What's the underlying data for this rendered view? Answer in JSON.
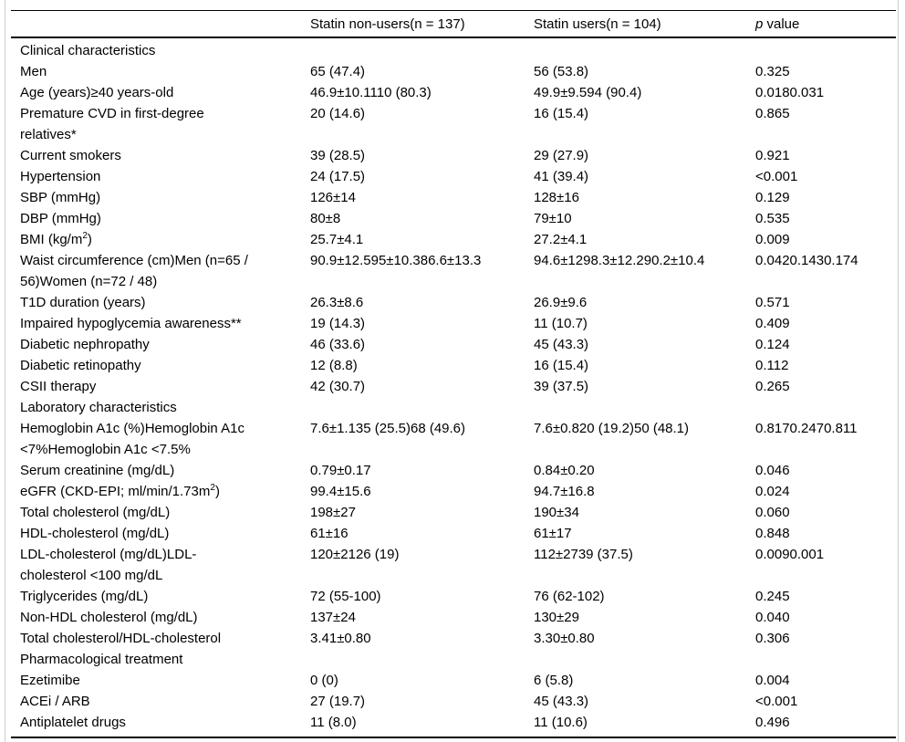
{
  "page": {
    "background_color": "#ffffff",
    "frame_border_color": "#cccccc",
    "rule_color": "#000000",
    "text_color": "#000000"
  },
  "table": {
    "header": {
      "empty": "",
      "non_users": "Statin non-users(n = 137)",
      "users": "Statin users(n = 104)",
      "p_italic": "p",
      "p_rest": " value"
    },
    "rows": [
      {
        "type": "section",
        "label": "Clinical characteristics",
        "non_users": "",
        "users": "",
        "p": ""
      },
      {
        "type": "data",
        "label": "Men",
        "non_users": "65 (47.4)",
        "users": "56 (53.8)",
        "p": "0.325"
      },
      {
        "type": "data",
        "label": "Age (years)≥40 years-old",
        "non_users": "46.9±10.1110 (80.3)",
        "users": "49.9±9.594 (90.4)",
        "p": "0.0180.031"
      },
      {
        "type": "data",
        "label": "Premature CVD in first-degree\nrelatives*",
        "non_users": "20 (14.6)",
        "users": "16 (15.4)",
        "p": "0.865"
      },
      {
        "type": "data",
        "label": "Current smokers",
        "non_users": "39 (28.5)",
        "users": "29 (27.9)",
        "p": "0.921"
      },
      {
        "type": "data",
        "label": "Hypertension",
        "non_users": "24 (17.5)",
        "users": "41 (39.4)",
        "p": "<0.001"
      },
      {
        "type": "data",
        "label": "SBP (mmHg)",
        "non_users": "126±14",
        "users": "128±16",
        "p": "0.129"
      },
      {
        "type": "data",
        "label": "DBP (mmHg)",
        "non_users": "80±8",
        "users": "79±10",
        "p": "0.535"
      },
      {
        "type": "data",
        "label": "BMI (kg/m^{2})",
        "non_users": "25.7±4.1",
        "users": "27.2±4.1",
        "p": "0.009"
      },
      {
        "type": "data",
        "label": "Waist circumference (cm)Men (n=65 /\n56)Women (n=72 / 48)",
        "non_users": "90.9±12.595±10.386.6±13.3",
        "users": "94.6±1298.3±12.290.2±10.4",
        "p": "0.0420.1430.174"
      },
      {
        "type": "data",
        "label": "T1D duration (years)",
        "non_users": "26.3±8.6",
        "users": "26.9±9.6",
        "p": "0.571"
      },
      {
        "type": "data",
        "label": "Impaired hypoglycemia awareness**",
        "non_users": "19 (14.3)",
        "users": "11 (10.7)",
        "p": "0.409"
      },
      {
        "type": "data",
        "label": "Diabetic nephropathy",
        "non_users": "46 (33.6)",
        "users": "45 (43.3)",
        "p": "0.124"
      },
      {
        "type": "data",
        "label": "Diabetic retinopathy",
        "non_users": "12 (8.8)",
        "users": "16 (15.4)",
        "p": "0.112"
      },
      {
        "type": "data",
        "label": "CSII therapy",
        "non_users": "42 (30.7)",
        "users": "39 (37.5)",
        "p": "0.265"
      },
      {
        "type": "section",
        "label": "Laboratory characteristics",
        "non_users": "",
        "users": "",
        "p": ""
      },
      {
        "type": "data",
        "label": "Hemoglobin A1c (%)Hemoglobin A1c\n<7%Hemoglobin A1c <7.5%",
        "non_users": "7.6±1.135 (25.5)68 (49.6)",
        "users": "7.6±0.820 (19.2)50 (48.1)",
        "p": "0.8170.2470.811"
      },
      {
        "type": "data",
        "label": "Serum creatinine (mg/dL)",
        "non_users": "0.79±0.17",
        "users": "0.84±0.20",
        "p": "0.046"
      },
      {
        "type": "data",
        "label": "eGFR (CKD-EPI; ml/min/1.73m^{2})",
        "non_users": "99.4±15.6",
        "users": "94.7±16.8",
        "p": "0.024"
      },
      {
        "type": "data",
        "label": "Total cholesterol (mg/dL)",
        "non_users": "198±27",
        "users": "190±34",
        "p": "0.060"
      },
      {
        "type": "data",
        "label": "HDL-cholesterol (mg/dL)",
        "non_users": "61±16",
        "users": "61±17",
        "p": "0.848"
      },
      {
        "type": "data",
        "label": "LDL-cholesterol (mg/dL)LDL-\ncholesterol <100 mg/dL",
        "non_users": "120±2126 (19)",
        "users": "112±2739 (37.5)",
        "p": "0.0090.001"
      },
      {
        "type": "data",
        "label": "Triglycerides (mg/dL)",
        "non_users": "72 (55-100)",
        "users": "76 (62-102)",
        "p": "0.245"
      },
      {
        "type": "data",
        "label": "Non-HDL cholesterol (mg/dL)",
        "non_users": "137±24",
        "users": "130±29",
        "p": "0.040"
      },
      {
        "type": "data",
        "label": "Total cholesterol/HDL-cholesterol",
        "non_users": "3.41±0.80",
        "users": "3.30±0.80",
        "p": "0.306"
      },
      {
        "type": "section",
        "label": "Pharmacological treatment",
        "non_users": "",
        "users": "",
        "p": ""
      },
      {
        "type": "data",
        "label": "Ezetimibe",
        "non_users": "0 (0)",
        "users": "6 (5.8)",
        "p": "0.004"
      },
      {
        "type": "data",
        "label": "ACEi / ARB",
        "non_users": "27 (19.7)",
        "users": "45 (43.3)",
        "p": "<0.001"
      },
      {
        "type": "data",
        "label": "Antiplatelet drugs",
        "non_users": "11 (8.0)",
        "users": "11 (10.6)",
        "p": "0.496"
      }
    ]
  }
}
